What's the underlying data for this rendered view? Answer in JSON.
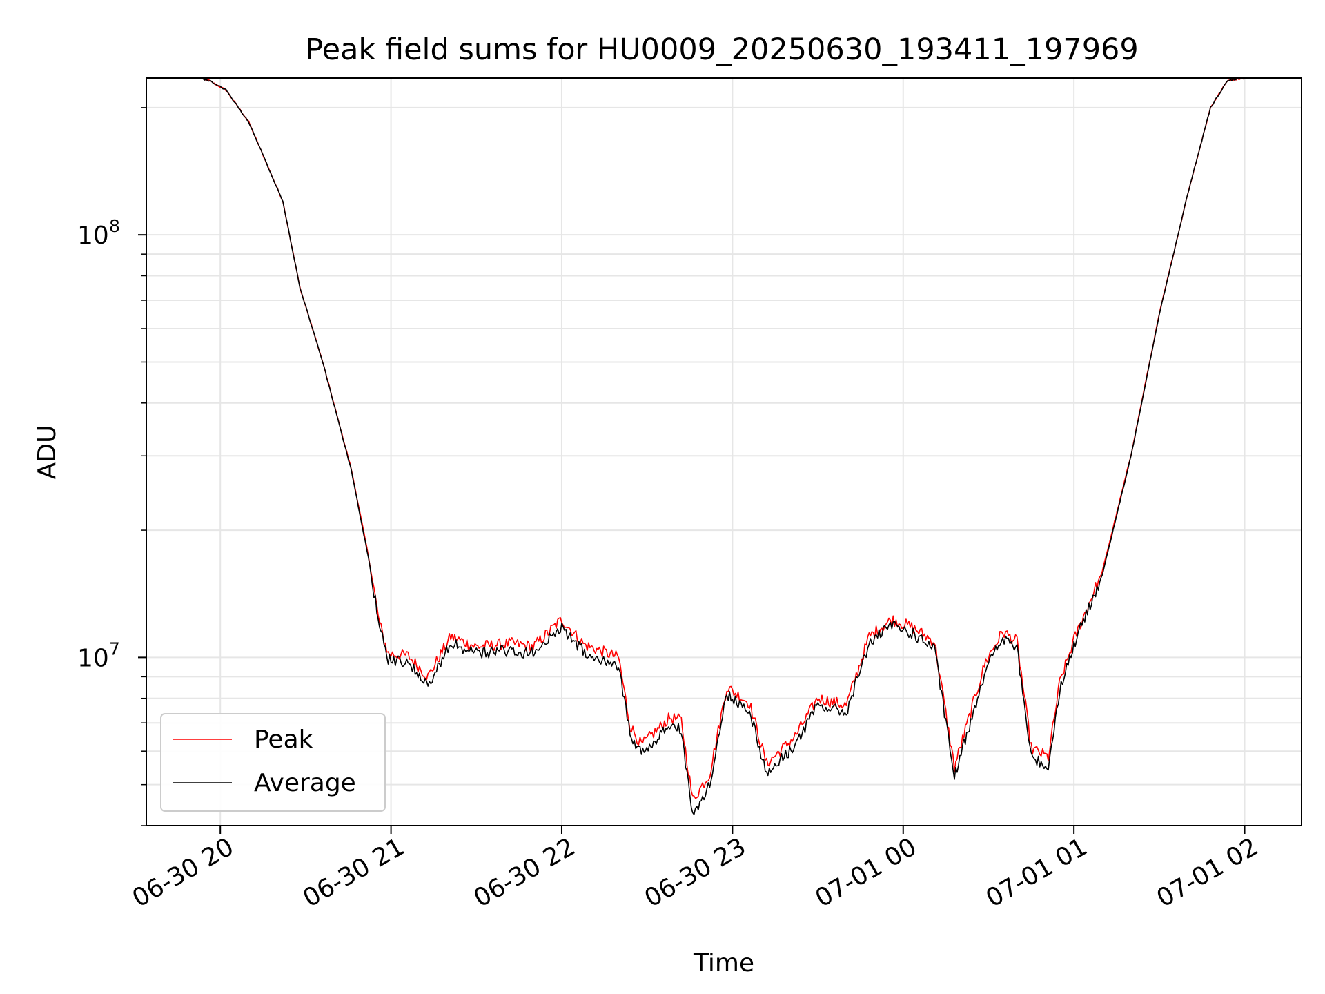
{
  "chart_data": {
    "type": "line",
    "title": "Peak field sums for HU0009_20250630_193411_197969",
    "xlabel": "Time",
    "ylabel": "ADU",
    "yscale": "log",
    "ylim": [
      4000000,
      235000000
    ],
    "xlim": [
      "2025-06-30 19:34",
      "2025-07-01 02:20"
    ],
    "x_ticks": [
      {
        "value": "2025-06-30 20:00",
        "label": "06-30 20"
      },
      {
        "value": "2025-06-30 21:00",
        "label": "06-30 21"
      },
      {
        "value": "2025-06-30 22:00",
        "label": "06-30 22"
      },
      {
        "value": "2025-06-30 23:00",
        "label": "06-30 23"
      },
      {
        "value": "2025-07-01 00:00",
        "label": "07-01 00"
      },
      {
        "value": "2025-07-01 01:00",
        "label": "07-01 01"
      },
      {
        "value": "2025-07-01 02:00",
        "label": "07-01 02"
      }
    ],
    "y_ticks": [
      {
        "value": 10000000,
        "base": "10",
        "exp": "7"
      },
      {
        "value": 100000000,
        "base": "10",
        "exp": "8"
      }
    ],
    "grid": true,
    "legend": "lower-left",
    "series": [
      {
        "name": "Peak",
        "color": "#ff0000",
        "x": [
          "2025-06-30 19:52",
          "2025-06-30 19:56",
          "2025-06-30 20:02",
          "2025-06-30 20:10",
          "2025-06-30 20:22",
          "2025-06-30 20:28",
          "2025-06-30 20:36",
          "2025-06-30 20:46",
          "2025-06-30 20:52",
          "2025-06-30 20:56",
          "2025-06-30 20:59",
          "2025-06-30 21:06",
          "2025-06-30 21:13",
          "2025-06-30 21:21",
          "2025-06-30 21:30",
          "2025-06-30 21:42",
          "2025-06-30 21:50",
          "2025-06-30 22:00",
          "2025-06-30 22:08",
          "2025-06-30 22:20",
          "2025-06-30 22:24",
          "2025-06-30 22:28",
          "2025-06-30 22:38",
          "2025-06-30 22:42",
          "2025-06-30 22:46",
          "2025-06-30 22:52",
          "2025-06-30 22:58",
          "2025-06-30 23:06",
          "2025-06-30 23:12",
          "2025-06-30 23:22",
          "2025-06-30 23:30",
          "2025-06-30 23:40",
          "2025-06-30 23:48",
          "2025-06-30 23:56",
          "2025-07-01 00:03",
          "2025-07-01 00:11",
          "2025-07-01 00:18",
          "2025-07-01 00:29",
          "2025-07-01 00:35",
          "2025-07-01 00:40",
          "2025-07-01 00:45",
          "2025-07-01 00:51",
          "2025-07-01 00:55",
          "2025-07-01 01:00",
          "2025-07-01 01:10",
          "2025-07-01 01:20",
          "2025-07-01 01:30",
          "2025-07-01 01:40",
          "2025-07-01 01:48",
          "2025-07-01 01:54",
          "2025-07-01 02:00"
        ],
        "y": [
          235000000,
          232000000,
          220000000,
          185000000,
          120000000,
          75000000,
          50000000,
          28000000,
          17500000,
          12000000,
          10200000,
          10100000,
          9000000,
          11200000,
          10600000,
          10800000,
          10600000,
          12300000,
          10700000,
          10000000,
          6900000,
          6200000,
          7200000,
          7100000,
          4600000,
          5300000,
          8500000,
          7800000,
          5600000,
          6500000,
          8000000,
          7700000,
          11200000,
          12300000,
          11800000,
          10900000,
          5500000,
          9800000,
          11500000,
          10900000,
          6100000,
          5800000,
          8700000,
          11000000,
          16000000,
          30000000,
          65000000,
          125000000,
          200000000,
          232000000,
          235000000
        ]
      },
      {
        "name": "Average",
        "color": "#000000",
        "x": [
          "2025-06-30 19:52",
          "2025-06-30 19:56",
          "2025-06-30 20:02",
          "2025-06-30 20:10",
          "2025-06-30 20:22",
          "2025-06-30 20:28",
          "2025-06-30 20:36",
          "2025-06-30 20:46",
          "2025-06-30 20:52",
          "2025-06-30 20:56",
          "2025-06-30 20:59",
          "2025-06-30 21:06",
          "2025-06-30 21:13",
          "2025-06-30 21:21",
          "2025-06-30 21:30",
          "2025-06-30 21:42",
          "2025-06-30 21:50",
          "2025-06-30 22:00",
          "2025-06-30 22:08",
          "2025-06-30 22:20",
          "2025-06-30 22:24",
          "2025-06-30 22:28",
          "2025-06-30 22:38",
          "2025-06-30 22:42",
          "2025-06-30 22:46",
          "2025-06-30 22:52",
          "2025-06-30 22:58",
          "2025-06-30 23:06",
          "2025-06-30 23:12",
          "2025-06-30 23:22",
          "2025-06-30 23:30",
          "2025-06-30 23:40",
          "2025-06-30 23:48",
          "2025-06-30 23:56",
          "2025-07-01 00:03",
          "2025-07-01 00:11",
          "2025-07-01 00:18",
          "2025-07-01 00:29",
          "2025-07-01 00:35",
          "2025-07-01 00:40",
          "2025-07-01 00:45",
          "2025-07-01 00:51",
          "2025-07-01 00:55",
          "2025-07-01 01:00",
          "2025-07-01 01:10",
          "2025-07-01 01:20",
          "2025-07-01 01:30",
          "2025-07-01 01:40",
          "2025-07-01 01:48",
          "2025-07-01 01:54",
          "2025-07-01 02:00"
        ],
        "y": [
          235000000,
          232000000,
          220000000,
          185000000,
          120000000,
          75000000,
          50000000,
          27800000,
          17300000,
          11800000,
          9900000,
          9700000,
          8600000,
          10800000,
          10200000,
          10400000,
          10200000,
          11800000,
          10300000,
          9600000,
          6600000,
          5900000,
          6900000,
          6800000,
          4200000,
          5000000,
          8200000,
          7500000,
          5300000,
          6200000,
          7700000,
          7400000,
          10800000,
          11900000,
          11400000,
          10500000,
          5200000,
          9400000,
          11100000,
          10500000,
          5800000,
          5500000,
          8400000,
          10700000,
          15700000,
          29800000,
          64800000,
          125000000,
          200000000,
          232000000,
          235000000
        ]
      }
    ]
  }
}
